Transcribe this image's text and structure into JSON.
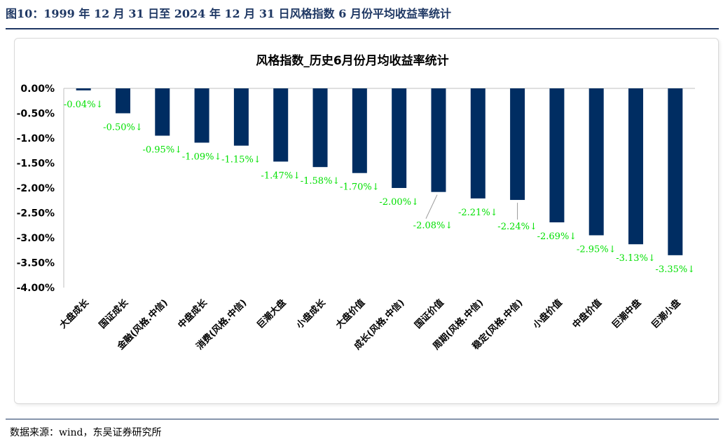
{
  "figure_title": "图10：1999 年 12 月 31 日至 2024 年 12 月 31 日风格指数 6 月份平均收益率统计",
  "source": "数据来源：wind，东吴证券研究所",
  "colors": {
    "bar": "#002d62",
    "label": "#00e000",
    "heading": "#1f3864"
  },
  "chart_data": {
    "type": "bar",
    "title": "风格指数_历史6月份月均收益率统计",
    "categories": [
      "大盘成长",
      "国证成长",
      "金融(风格.中信)",
      "中盘成长",
      "消费(风格.中信)",
      "巨潮大盘",
      "小盘成长",
      "大盘价值",
      "成长(风格.中信)",
      "国证价值",
      "周期(风格.中信)",
      "稳定(风格.中信)",
      "小盘价值",
      "中盘价值",
      "巨潮中盘",
      "巨潮小盘"
    ],
    "values": [
      -0.04,
      -0.5,
      -0.95,
      -1.09,
      -1.15,
      -1.47,
      -1.58,
      -1.7,
      -2.0,
      -2.08,
      -2.21,
      -2.24,
      -2.69,
      -2.95,
      -3.13,
      -3.35
    ],
    "data_labels": [
      "-0.04%↓",
      "-0.50%↓",
      "-0.95%↓",
      "-1.09%↓",
      "-1.15%↓",
      "-1.47%↓",
      "-1.58%↓",
      "-1.70%↓",
      "-2.00%↓",
      "-2.08%↓",
      "-2.21%↓",
      "-2.24%↓",
      "-2.69%↓",
      "-2.95%↓",
      "-3.13%↓",
      "-3.35%↓"
    ],
    "y_ticks": [
      0,
      -0.5,
      -1.0,
      -1.5,
      -2.0,
      -2.5,
      -3.0,
      -3.5,
      -4.0
    ],
    "y_tick_labels": [
      "0.00%",
      "-0.50%",
      "-1.00%",
      "-1.50%",
      "-2.00%",
      "-2.50%",
      "-3.00%",
      "-3.50%",
      "-4.00%"
    ],
    "ylim": [
      -4.0,
      0.0
    ],
    "unit": "%",
    "grid": false,
    "legend": "none"
  }
}
